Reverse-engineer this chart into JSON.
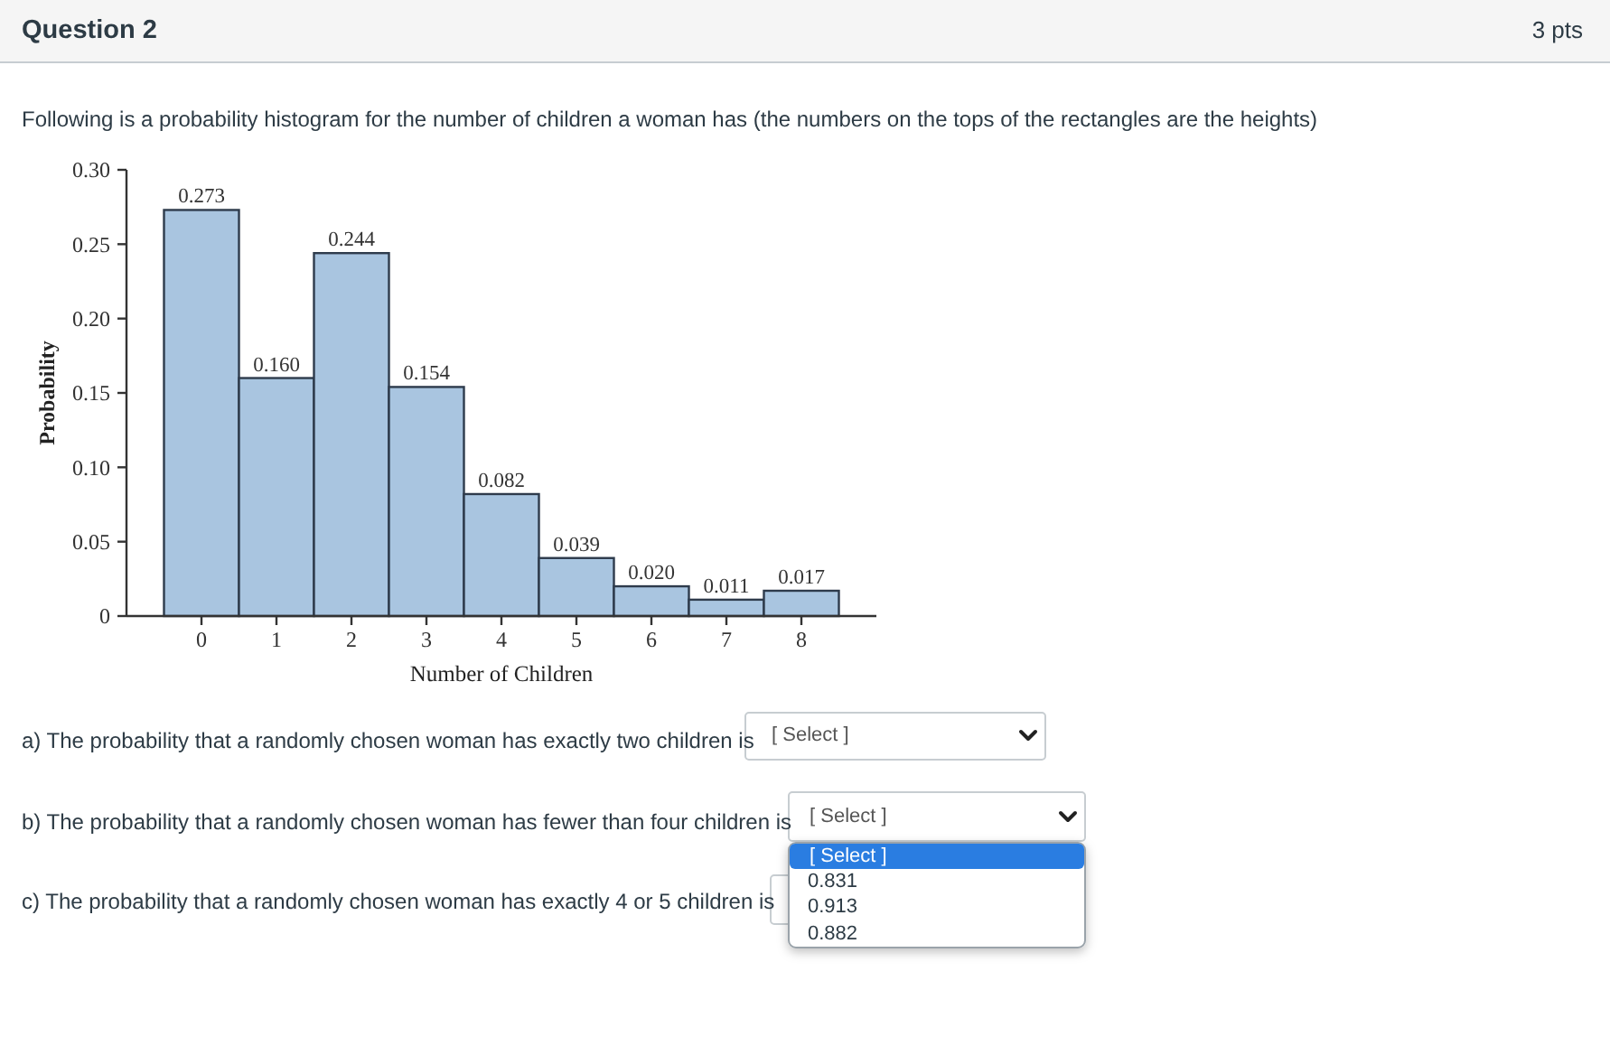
{
  "chart_data": {
    "type": "histogram",
    "bins": [
      -0.5,
      0.5,
      1.5,
      2.5,
      3.5,
      4.5,
      5.5,
      6.5,
      7.5,
      8.5
    ],
    "values": [
      0.273,
      0.16,
      0.244,
      0.154,
      0.082,
      0.039,
      0.02,
      0.011,
      0.017
    ],
    "value_labels": [
      "0.273",
      "0.160",
      "0.244",
      "0.154",
      "0.082",
      "0.039",
      "0.020",
      "0.011",
      "0.017"
    ],
    "color": "#a9c5e0",
    "xlim": [
      -1,
      9
    ],
    "xticks": [
      0,
      1,
      2,
      3,
      4,
      5,
      6,
      7,
      8
    ],
    "ylim": [
      0,
      0.3
    ],
    "yticks": [
      0,
      0.05,
      {
        "value": 0.1,
        "label": "0.10"
      },
      0.15,
      {
        "value": 0.2,
        "label": "0.20"
      },
      0.25,
      {
        "value": 0.3,
        "label": "0.30"
      }
    ],
    "xlabel": "Number of Children",
    "ylabel": "Probability",
    "annotations": [
      "Question 2",
      "3 pts",
      "Following is a probability histogram for the number of children a woman has (the numbers on the tops of the rectangles are the heights)",
      "a) The probability that a randomly chosen woman has exactly two children is",
      "[ Select ]",
      "b) The probability that a randomly chosen woman has fewer than four children is",
      "[ Select ]",
      "c) The probability that a randomly chosen woman has exactly 4 or 5 children is",
      "[ Select ]",
      "0.831",
      "0.913",
      "0.882"
    ]
  }
}
